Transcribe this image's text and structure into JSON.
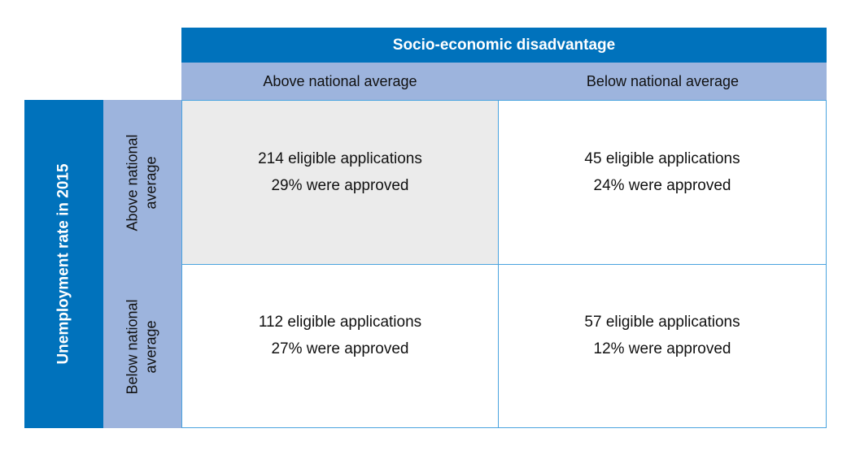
{
  "column_axis": {
    "title": "Socio-economic disadvantage",
    "columns": [
      "Above national average",
      "Below national average"
    ]
  },
  "row_axis": {
    "title": "Unemployment rate in 2015",
    "rows": [
      [
        "Above national",
        "average"
      ],
      [
        "Below national",
        "average"
      ]
    ]
  },
  "cells": [
    [
      {
        "applications": "214 eligible applications",
        "approved": "29% were approved"
      },
      {
        "applications": "45 eligible applications",
        "approved": "24% were approved"
      }
    ],
    [
      {
        "applications": "112 eligible applications",
        "approved": "27% were approved"
      },
      {
        "applications": "57 eligible applications",
        "approved": "12% were approved"
      }
    ]
  ],
  "colors": {
    "header_dark": "#0072bc",
    "header_light": "#9db4dd",
    "highlight_cell": "#ebebeb",
    "grid_line": "#4aa3df"
  }
}
